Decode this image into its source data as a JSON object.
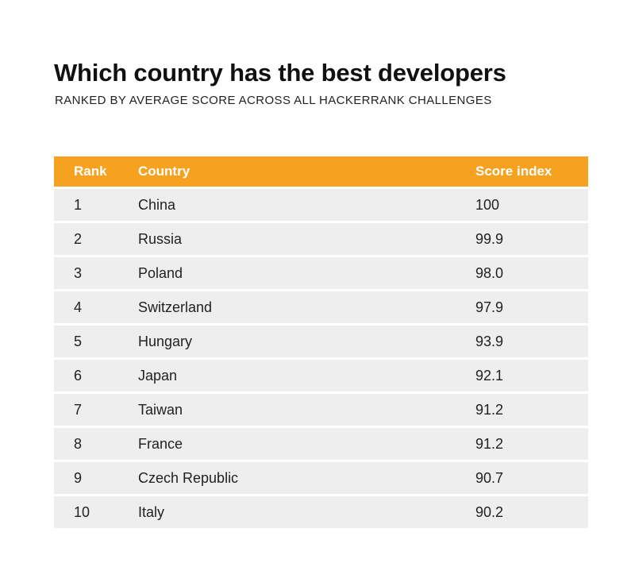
{
  "chart_data": {
    "type": "table",
    "title": "Which country has the best developers",
    "subtitle": "RANKED BY AVERAGE SCORE ACROSS ALL HACKERRANK CHALLENGES",
    "columns": [
      "Rank",
      "Country",
      "Score index"
    ],
    "rows": [
      {
        "rank": "1",
        "country": "China",
        "score": "100"
      },
      {
        "rank": "2",
        "country": "Russia",
        "score": "99.9"
      },
      {
        "rank": "3",
        "country": "Poland",
        "score": "98.0"
      },
      {
        "rank": "4",
        "country": "Switzerland",
        "score": "97.9"
      },
      {
        "rank": "5",
        "country": "Hungary",
        "score": "93.9"
      },
      {
        "rank": "6",
        "country": "Japan",
        "score": "92.1"
      },
      {
        "rank": "7",
        "country": "Taiwan",
        "score": "91.2"
      },
      {
        "rank": "8",
        "country": "France",
        "score": "91.2"
      },
      {
        "rank": "9",
        "country": "Czech Republic",
        "score": "90.7"
      },
      {
        "rank": "10",
        "country": "Italy",
        "score": "90.2"
      }
    ],
    "colors": {
      "header_background": "#f6a11f",
      "header_text": "#ffffff",
      "row_background": "#eeeeee"
    }
  }
}
